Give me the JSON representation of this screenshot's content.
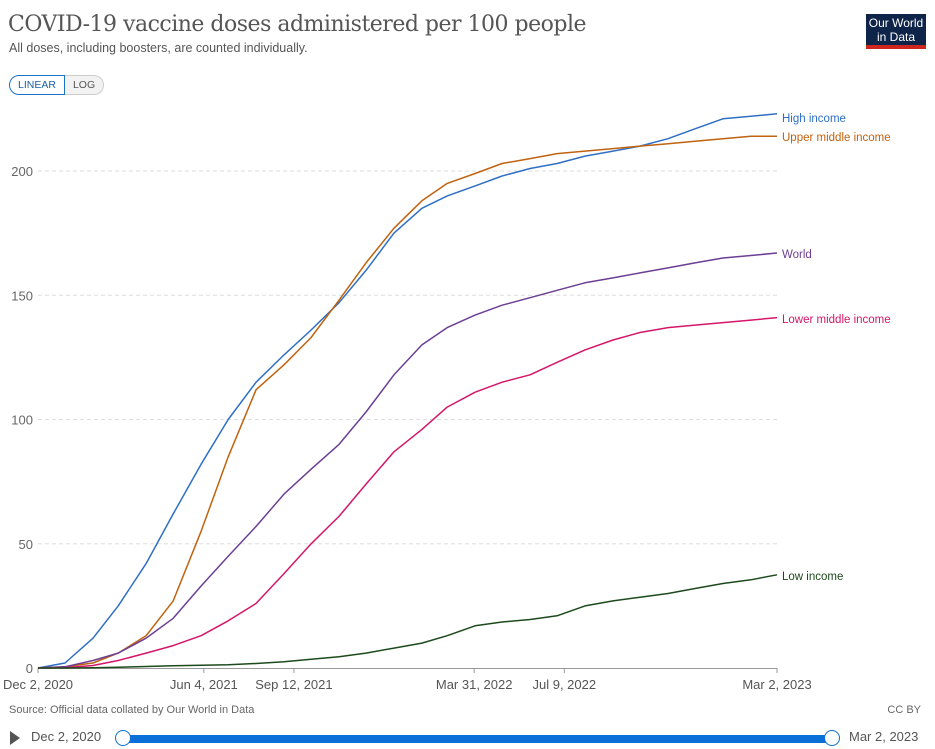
{
  "header": {
    "title": "COVID-19 vaccine doses administered per 100 people",
    "subtitle": "All doses, including boosters, are counted individually.",
    "logo": "Our World in Data"
  },
  "controls": {
    "linear": "LINEAR",
    "log": "LOG",
    "selected": "LINEAR"
  },
  "footer": {
    "source": "Source: Official data collated by Our World in Data",
    "license": "CC BY"
  },
  "timeline": {
    "start": "Dec 2, 2020",
    "end": "Mar 2, 2023",
    "play_icon": "play-icon"
  },
  "colors": {
    "accent": "#0a6fd6"
  },
  "chart_data": {
    "type": "line",
    "title": "COVID-19 vaccine doses administered per 100 people",
    "xlabel": "",
    "ylabel": "",
    "xlim": [
      "2020-12-02",
      "2023-03-02"
    ],
    "ylim": [
      0,
      225
    ],
    "grid": "horizontal dashed",
    "legend": "line-end labels",
    "yticks": [
      0,
      50,
      100,
      150,
      200
    ],
    "xticks": [
      {
        "date": "2020-12-02",
        "label": "Dec 2, 2020"
      },
      {
        "date": "2021-06-04",
        "label": "Jun 4, 2021"
      },
      {
        "date": "2021-09-12",
        "label": "Sep 12, 2021"
      },
      {
        "date": "2022-03-31",
        "label": "Mar 31, 2022"
      },
      {
        "date": "2022-07-09",
        "label": "Jul 9, 2022"
      },
      {
        "date": "2023-03-02",
        "label": "Mar 2, 2023"
      }
    ],
    "x": [
      "2020-12-02",
      "2021-01-01",
      "2021-02-01",
      "2021-03-01",
      "2021-04-01",
      "2021-05-01",
      "2021-06-01",
      "2021-07-01",
      "2021-08-01",
      "2021-09-01",
      "2021-10-01",
      "2021-11-01",
      "2021-12-01",
      "2022-01-01",
      "2022-02-01",
      "2022-03-01",
      "2022-04-01",
      "2022-05-01",
      "2022-06-01",
      "2022-07-01",
      "2022-08-01",
      "2022-09-01",
      "2022-10-01",
      "2022-11-01",
      "2022-12-01",
      "2023-01-01",
      "2023-02-01",
      "2023-03-02"
    ],
    "series": [
      {
        "name": "High income",
        "color": "#2f6fc4",
        "values": [
          0,
          2,
          12,
          25,
          42,
          62,
          82,
          100,
          115,
          126,
          136,
          147,
          160,
          175,
          185,
          190,
          194,
          198,
          201,
          203,
          206,
          208,
          210,
          213,
          217,
          221,
          222,
          223
        ]
      },
      {
        "name": "Upper middle income",
        "color": "#c0620f",
        "values": [
          0,
          0.5,
          2,
          6,
          13,
          27,
          55,
          85,
          112,
          122,
          133,
          148,
          163,
          177,
          188,
          195,
          199,
          203,
          205,
          207,
          208,
          209,
          210,
          211,
          212,
          213,
          214,
          214
        ]
      },
      {
        "name": "World",
        "color": "#6c3f94",
        "values": [
          0,
          0.5,
          3,
          6,
          12,
          20,
          33,
          45,
          57,
          70,
          80,
          90,
          103,
          118,
          130,
          137,
          142,
          146,
          149,
          152,
          155,
          157,
          159,
          161,
          163,
          165,
          166,
          167
        ]
      },
      {
        "name": "Lower middle income",
        "color": "#d4166a",
        "values": [
          0,
          0.1,
          1,
          3,
          6,
          9,
          13,
          19,
          26,
          38,
          50,
          61,
          74,
          87,
          96,
          105,
          111,
          115,
          118,
          123,
          128,
          132,
          135,
          137,
          138,
          139,
          140,
          141
        ]
      },
      {
        "name": "Low income",
        "color": "#1d4a1d",
        "values": [
          0,
          0,
          0.1,
          0.3,
          0.6,
          0.9,
          1.1,
          1.3,
          1.8,
          2.5,
          3.5,
          4.5,
          6,
          8,
          10,
          13,
          17,
          18.5,
          19.5,
          21,
          25,
          27,
          28.5,
          30,
          32,
          34,
          35.5,
          37.5
        ]
      }
    ]
  }
}
